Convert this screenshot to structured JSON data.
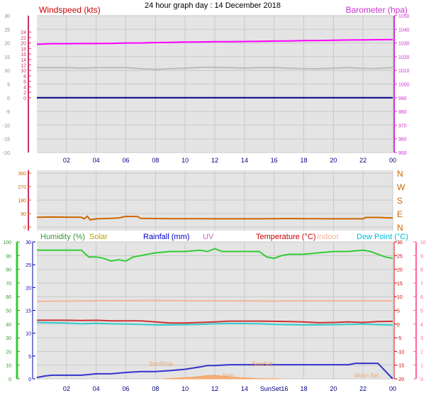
{
  "page": {
    "title": "24 hour graph day : 14 December 2018"
  },
  "colors": {
    "background": "#ffffff",
    "plot_bg": "#e4e4e4",
    "grid": "#c8c8c8",
    "wind_axis": "#cc3366",
    "baro_axis": "#cc33cc",
    "wind_label": "#cc0000",
    "humidity_axis": "#33cc33",
    "temp_right_axis": "#ff6699",
    "rain_axis": "#0000aa",
    "dir_label": "#cc6600",
    "time_label": "#000080"
  },
  "chart_data": [
    {
      "id": "wind_baro",
      "type": "line",
      "axes": {
        "left": {
          "label": "Windspeed (kts)",
          "ticks": [
            "-20",
            "-15",
            "-10",
            "-5",
            "0",
            "5",
            "10",
            "15",
            "20",
            "25",
            "30"
          ],
          "sub_ticks": [
            "0",
            "2",
            "4",
            "6",
            "8",
            "10",
            "12",
            "14",
            "16",
            "18",
            "20",
            "22",
            "24"
          ],
          "range": [
            -20,
            30
          ]
        },
        "right": {
          "label": "Barometer (hpa)",
          "ticks": [
            "950",
            "960",
            "970",
            "980",
            "990",
            "1000",
            "1010",
            "1020",
            "1030",
            "1040",
            "1050"
          ],
          "range": [
            950,
            1050
          ]
        }
      },
      "x_ticks": [
        "02",
        "04",
        "06",
        "08",
        "10",
        "12",
        "14",
        "16",
        "18",
        "20",
        "22",
        "00"
      ],
      "series": [
        {
          "key": "barometer",
          "axis": "right",
          "color": "#ff00ff",
          "x": [
            0,
            1,
            2,
            3,
            4,
            5,
            6,
            7,
            8,
            9,
            10,
            11,
            12,
            13,
            14,
            15,
            16,
            17,
            18,
            19,
            20,
            21,
            22,
            23,
            24
          ],
          "values": [
            1029,
            1029.5,
            1029.5,
            1029.6,
            1029.6,
            1029.7,
            1030,
            1030,
            1030.3,
            1030.4,
            1030.7,
            1030.8,
            1031,
            1031,
            1031.1,
            1031.2,
            1031.4,
            1031.5,
            1031.7,
            1031.8,
            1032,
            1032.2,
            1032.3,
            1032.4,
            1032.5
          ]
        },
        {
          "key": "wind_gray",
          "axis": "left",
          "color": "#bbbbbb",
          "x": [
            0,
            1,
            2,
            3,
            4,
            5,
            6,
            7,
            8,
            9,
            10,
            11,
            12,
            13,
            14,
            15,
            16,
            17,
            18,
            19,
            20,
            21,
            22,
            23,
            24
          ],
          "values": [
            11,
            11,
            11,
            10.8,
            11,
            11,
            11,
            10.6,
            10.4,
            10.6,
            10.8,
            11.1,
            11.1,
            11,
            10.8,
            11,
            11,
            10.8,
            10.6,
            10.6,
            10.8,
            11,
            10.7,
            10.7,
            11
          ]
        },
        {
          "key": "wind_dark",
          "axis": "left",
          "color": "#000080",
          "x": [
            0,
            24
          ],
          "values": [
            0,
            0
          ]
        }
      ]
    },
    {
      "id": "direction",
      "type": "line",
      "axes": {
        "left": {
          "ticks": [
            "0",
            "90",
            "180",
            "270",
            "360"
          ],
          "range": [
            0,
            360
          ]
        },
        "right": {
          "ticks": [
            "N",
            "E",
            "S",
            "W",
            "N"
          ]
        }
      },
      "series": [
        {
          "key": "wind_dir",
          "color": "#cc6600",
          "x": [
            0,
            1,
            2,
            3,
            3.2,
            3.4,
            3.6,
            4,
            5,
            5.5,
            6,
            6.8,
            7,
            8,
            9,
            10,
            11,
            12,
            13,
            14,
            15,
            16,
            17,
            18,
            19,
            20,
            21,
            22,
            22.2,
            23,
            24
          ],
          "values": [
            65,
            67,
            66,
            65,
            55,
            72,
            48,
            55,
            58,
            60,
            71,
            70,
            58,
            57,
            56,
            56,
            56,
            55,
            55,
            55,
            55,
            56,
            57,
            56,
            56,
            55,
            55,
            55,
            64,
            64,
            60
          ]
        }
      ]
    },
    {
      "id": "env",
      "type": "line",
      "axes": {
        "left_outer": {
          "ticks": [
            "0",
            "10",
            "20",
            "30",
            "40",
            "50",
            "60",
            "70",
            "80",
            "90",
            "100"
          ],
          "range": [
            0,
            100
          ]
        },
        "left_inner": {
          "ticks": [
            "0",
            "5",
            "10",
            "15",
            "20",
            "25",
            "30"
          ],
          "range": [
            0,
            30
          ]
        },
        "right_inner": {
          "ticks": [
            "-20",
            "-15",
            "-10",
            "-5",
            "0",
            "5",
            "10",
            "15",
            "20",
            "25",
            "30"
          ],
          "range": [
            -20,
            30
          ]
        },
        "right_outer": {
          "ticks": [
            "0",
            "1",
            "2",
            "3",
            "4",
            "5",
            "6",
            "7",
            "8",
            "9",
            "10"
          ],
          "range": [
            0,
            10
          ]
        }
      },
      "legend": {
        "humidity": "Humidity (%)",
        "solar": "Solar",
        "rainfall": "Rainfall (mm)",
        "uv": "UV",
        "temperature": "Temperature (°C)",
        "indoor": "Indoor",
        "dewpoint": "Dew Point (°C)"
      },
      "x_ticks": [
        "02",
        "04",
        "06",
        "08",
        "10",
        "12",
        "14",
        "SunSet16",
        "18",
        "20",
        "22",
        "00"
      ],
      "annotations": {
        "sunrise": "SunRise",
        "sunset": "SunSet",
        "moonset": "Moon Set",
        "rain": "Rain"
      },
      "series": [
        {
          "key": "humidity",
          "axis": "left_outer",
          "color": "#33cc33",
          "x": [
            0,
            1,
            2,
            3,
            3.5,
            4,
            4.5,
            5,
            5.5,
            6,
            6.5,
            7,
            8,
            9,
            10,
            11,
            11.5,
            12,
            12.5,
            13,
            14,
            15,
            15.5,
            16,
            16.5,
            17,
            18,
            19,
            20,
            21,
            22,
            22.5,
            23,
            23.5,
            24
          ],
          "values": [
            94,
            94,
            94,
            94,
            89,
            89,
            88,
            86,
            87,
            86,
            89,
            90,
            92,
            93,
            93,
            94,
            93,
            95,
            93,
            93,
            93,
            93,
            89,
            88,
            90,
            91,
            91,
            92,
            93,
            93,
            94,
            93,
            91,
            89,
            88
          ]
        },
        {
          "key": "indoor",
          "axis": "right_inner",
          "color": "#f4b59a",
          "x": [
            0,
            4,
            8,
            10,
            12,
            16,
            18,
            20,
            24
          ],
          "values": [
            8.3,
            8.5,
            8.6,
            8.5,
            8.5,
            8.4,
            8.5,
            8.5,
            8.5
          ]
        },
        {
          "key": "temperature",
          "axis": "right_inner",
          "color": "#cc3333",
          "x": [
            0,
            1,
            2,
            3,
            4,
            5,
            6,
            7,
            8,
            9,
            10,
            11,
            12,
            13,
            14,
            15,
            16,
            17,
            18,
            19,
            20,
            21,
            22,
            23,
            24
          ],
          "values": [
            1.4,
            1.4,
            1.4,
            1.3,
            1.4,
            1.2,
            1.2,
            1.2,
            0.8,
            0.4,
            0.4,
            0.6,
            0.8,
            1.1,
            1.1,
            1.1,
            1.0,
            0.9,
            0.8,
            0.5,
            0.6,
            0.8,
            0.6,
            0.9,
            1.0
          ]
        },
        {
          "key": "dewpoint",
          "axis": "right_inner",
          "color": "#33cccc",
          "x": [
            0,
            1,
            2,
            3,
            4,
            5,
            6,
            7,
            8,
            9,
            10,
            11,
            12,
            13,
            14,
            15,
            16,
            17,
            18,
            19,
            20,
            21,
            22,
            23,
            24
          ],
          "values": [
            0.6,
            0.5,
            0.4,
            0.1,
            0.3,
            0.1,
            0.0,
            -0.1,
            -0.3,
            -0.3,
            -0.2,
            -0.1,
            0.1,
            0.2,
            0.2,
            0.1,
            -0.1,
            -0.2,
            -0.3,
            -0.3,
            -0.2,
            -0.1,
            0.0,
            -0.2,
            -0.4
          ]
        },
        {
          "key": "rainfall",
          "axis": "left_inner",
          "color": "#3333cc",
          "x": [
            0,
            0.5,
            1,
            2,
            3,
            4,
            5,
            6,
            7,
            8,
            9,
            10,
            11,
            11.5,
            12,
            13,
            14,
            15,
            16,
            17,
            18,
            19,
            20,
            21,
            21.5,
            22,
            23,
            24
          ],
          "values": [
            0.3,
            0.6,
            0.8,
            0.8,
            0.8,
            1.1,
            1.1,
            1.4,
            1.6,
            1.6,
            1.8,
            2.1,
            2.6,
            2.9,
            2.9,
            3.1,
            3.1,
            3.1,
            3.1,
            3.1,
            3.1,
            3.1,
            3.1,
            3.1,
            3.4,
            3.4,
            3.4,
            0
          ]
        },
        {
          "key": "solar",
          "axis": "left_outer",
          "color": "#f4b07a",
          "x": [
            8.5,
            9.5,
            10.5,
            11,
            11.5,
            12,
            12.5,
            13,
            13.5,
            14,
            15,
            16.5
          ],
          "values": [
            0,
            0.5,
            1.2,
            1.8,
            2.4,
            2.6,
            2.0,
            1.4,
            1.0,
            0.6,
            0.2,
            0
          ]
        }
      ]
    }
  ]
}
